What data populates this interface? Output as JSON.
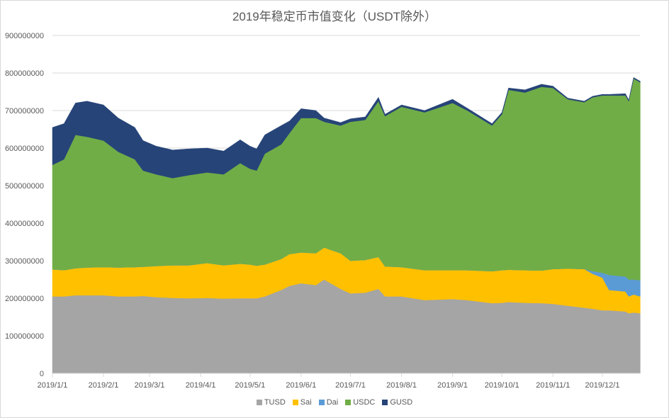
{
  "chart_data": {
    "type": "area",
    "stacked": true,
    "title": "2019年稳定币市值变化（USDT除外）",
    "xlabel": "",
    "ylabel": "",
    "value_unit_multiplier": 1000000,
    "ylim": [
      0,
      900000000
    ],
    "y_ticks": [
      "0",
      "100000000",
      "200000000",
      "300000000",
      "400000000",
      "500000000",
      "600000000",
      "700000000",
      "800000000",
      "900000000"
    ],
    "x_ticks": [
      "2019/1/1",
      "2019/2/1",
      "2019/3/1",
      "2019/4/1",
      "2019/5/1",
      "2019/6/1",
      "2019/7/1",
      "2019/8/1",
      "2019/9/1",
      "2019/10/1",
      "2019/11/1",
      "2019/12/1"
    ],
    "grid": true,
    "legend_position": "bottom",
    "x": [
      "2019-01-01",
      "2019-01-08",
      "2019-01-15",
      "2019-01-22",
      "2019-02-01",
      "2019-02-10",
      "2019-02-20",
      "2019-02-25",
      "2019-03-05",
      "2019-03-15",
      "2019-03-25",
      "2019-04-05",
      "2019-04-15",
      "2019-04-25",
      "2019-05-01",
      "2019-05-05",
      "2019-05-10",
      "2019-05-20",
      "2019-05-25",
      "2019-06-01",
      "2019-06-10",
      "2019-06-15",
      "2019-06-25",
      "2019-07-01",
      "2019-07-10",
      "2019-07-18",
      "2019-07-22",
      "2019-08-01",
      "2019-08-15",
      "2019-09-01",
      "2019-09-10",
      "2019-09-25",
      "2019-10-01",
      "2019-10-05",
      "2019-10-15",
      "2019-10-25",
      "2019-11-01",
      "2019-11-10",
      "2019-11-20",
      "2019-11-25",
      "2019-12-01",
      "2019-12-05",
      "2019-12-15",
      "2019-12-17",
      "2019-12-20",
      "2019-12-24"
    ],
    "series": [
      {
        "name": "TUSD",
        "color": "#a5a5a5",
        "values": [
          205,
          205,
          208,
          208,
          208,
          205,
          205,
          206,
          203,
          201,
          200,
          201,
          199,
          200,
          200,
          200,
          205,
          222,
          233,
          240,
          235,
          250,
          225,
          213,
          215,
          225,
          205,
          205,
          195,
          198,
          195,
          187,
          188,
          190,
          188,
          187,
          185,
          180,
          175,
          172,
          168,
          168,
          165,
          160,
          162,
          160
        ]
      },
      {
        "name": "Sai",
        "color": "#ffc000",
        "values": [
          72,
          70,
          72,
          74,
          75,
          77,
          78,
          78,
          83,
          87,
          88,
          93,
          89,
          92,
          90,
          87,
          85,
          83,
          85,
          82,
          85,
          85,
          95,
          87,
          87,
          85,
          80,
          78,
          80,
          77,
          80,
          85,
          87,
          86,
          87,
          87,
          93,
          99,
          103,
          93,
          87,
          54,
          53,
          45,
          48,
          45
        ]
      },
      {
        "name": "Dai",
        "color": "#5b9bd5",
        "values": [
          0,
          0,
          0,
          0,
          0,
          0,
          0,
          0,
          0,
          0,
          0,
          0,
          0,
          0,
          0,
          0,
          0,
          0,
          0,
          0,
          0,
          0,
          0,
          0,
          0,
          0,
          0,
          0,
          0,
          0,
          0,
          0,
          0,
          0,
          0,
          0,
          0,
          0,
          0,
          7,
          13,
          40,
          40,
          45,
          40,
          43
        ]
      },
      {
        "name": "USDC",
        "color": "#70ad47",
        "values": [
          278,
          295,
          355,
          348,
          337,
          308,
          287,
          256,
          244,
          232,
          240,
          241,
          242,
          268,
          255,
          253,
          295,
          305,
          322,
          358,
          360,
          335,
          340,
          370,
          373,
          415,
          400,
          427,
          420,
          445,
          425,
          388,
          415,
          479,
          473,
          489,
          482,
          451,
          444,
          463,
          472,
          478,
          482,
          475,
          535,
          527
        ]
      },
      {
        "name": "GUSD",
        "color": "#264478",
        "values": [
          100,
          95,
          85,
          95,
          95,
          90,
          85,
          80,
          75,
          75,
          70,
          65,
          62,
          62,
          60,
          58,
          50,
          50,
          32,
          25,
          20,
          10,
          8,
          8,
          8,
          10,
          5,
          5,
          5,
          10,
          6,
          5,
          5,
          5,
          7,
          7,
          5,
          3,
          3,
          3,
          3,
          3,
          5,
          3,
          3,
          3
        ]
      }
    ]
  }
}
